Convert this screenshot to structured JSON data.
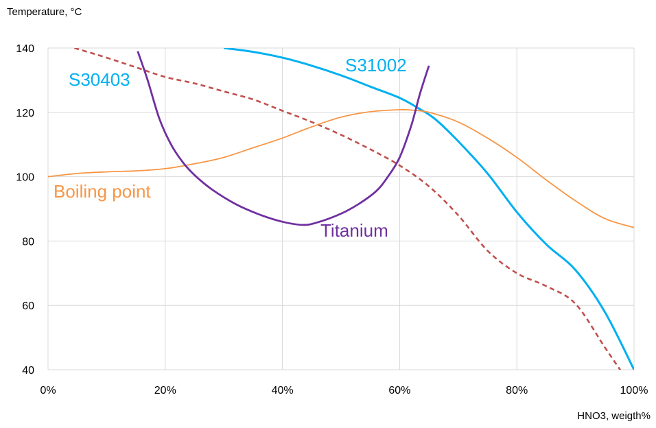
{
  "chart_data": {
    "type": "line",
    "title": "",
    "xlabel": "HNO3, weigth%",
    "ylabel": "Temperature, °C",
    "xlim": [
      0,
      100
    ],
    "ylim": [
      40,
      140
    ],
    "x_ticks": [
      0,
      20,
      40,
      60,
      80,
      100
    ],
    "x_tick_labels": [
      "0%",
      "20%",
      "40%",
      "60%",
      "80%",
      "100%"
    ],
    "y_ticks": [
      40,
      60,
      80,
      100,
      120,
      140
    ],
    "y_tick_labels": [
      "40",
      "60",
      "80",
      "100",
      "120",
      "140"
    ],
    "grid": true,
    "legend": "none",
    "series": [
      {
        "name": "S31002",
        "color": "#00b0f0",
        "style": "solid",
        "x": [
          30,
          35,
          40,
          45,
          50,
          55,
          60,
          63,
          66,
          70,
          75,
          80,
          85,
          90,
          95,
          100
        ],
        "y": [
          140,
          138.8,
          137,
          134.5,
          131.5,
          128,
          124.5,
          121.5,
          118,
          111,
          101,
          89,
          79,
          71,
          58,
          40
        ]
      },
      {
        "name": "S30403",
        "color": "#c0504d",
        "style": "dashed",
        "x": [
          4.5,
          10,
          15,
          20,
          25,
          30,
          35,
          40,
          45,
          50,
          55,
          60,
          65,
          70,
          75,
          80,
          85,
          90,
          95,
          98
        ],
        "y": [
          140,
          137,
          134,
          131,
          129,
          126.5,
          124,
          120.5,
          117,
          113,
          108.5,
          103.5,
          97,
          88,
          77,
          70,
          66,
          60.5,
          47,
          39
        ]
      },
      {
        "name": "Boiling point",
        "color": "#f79646",
        "style": "solid",
        "x": [
          0,
          5,
          10,
          15,
          20,
          25,
          30,
          35,
          40,
          45,
          50,
          55,
          60,
          62,
          65,
          70,
          75,
          80,
          85,
          90,
          95,
          100
        ],
        "y": [
          100,
          101,
          101.5,
          101.8,
          102.5,
          104,
          106,
          109,
          112,
          115.5,
          118.5,
          120.2,
          120.8,
          120.7,
          120,
          117,
          112,
          106,
          99,
          92.5,
          87,
          84.2
        ]
      },
      {
        "name": "Titanium",
        "color": "#7030a0",
        "style": "solid",
        "x": [
          15.3,
          17,
          19,
          21,
          23,
          25,
          28,
          32,
          36,
          40,
          43.5,
          46,
          50,
          53,
          56,
          58,
          60,
          62,
          63.5,
          65
        ],
        "y": [
          139,
          130,
          118,
          110,
          104.5,
          100.5,
          96,
          91.5,
          88.3,
          86,
          85,
          85.8,
          88.5,
          91.5,
          95.5,
          100,
          106,
          116,
          126,
          134.5
        ]
      }
    ],
    "annotations": [
      {
        "text": "S30403",
        "color": "#00b0f0"
      },
      {
        "text": "S31002",
        "color": "#00b0f0"
      },
      {
        "text": "Boiling point",
        "color": "#f79646"
      },
      {
        "text": "Titanium",
        "color": "#7030a0"
      }
    ]
  }
}
